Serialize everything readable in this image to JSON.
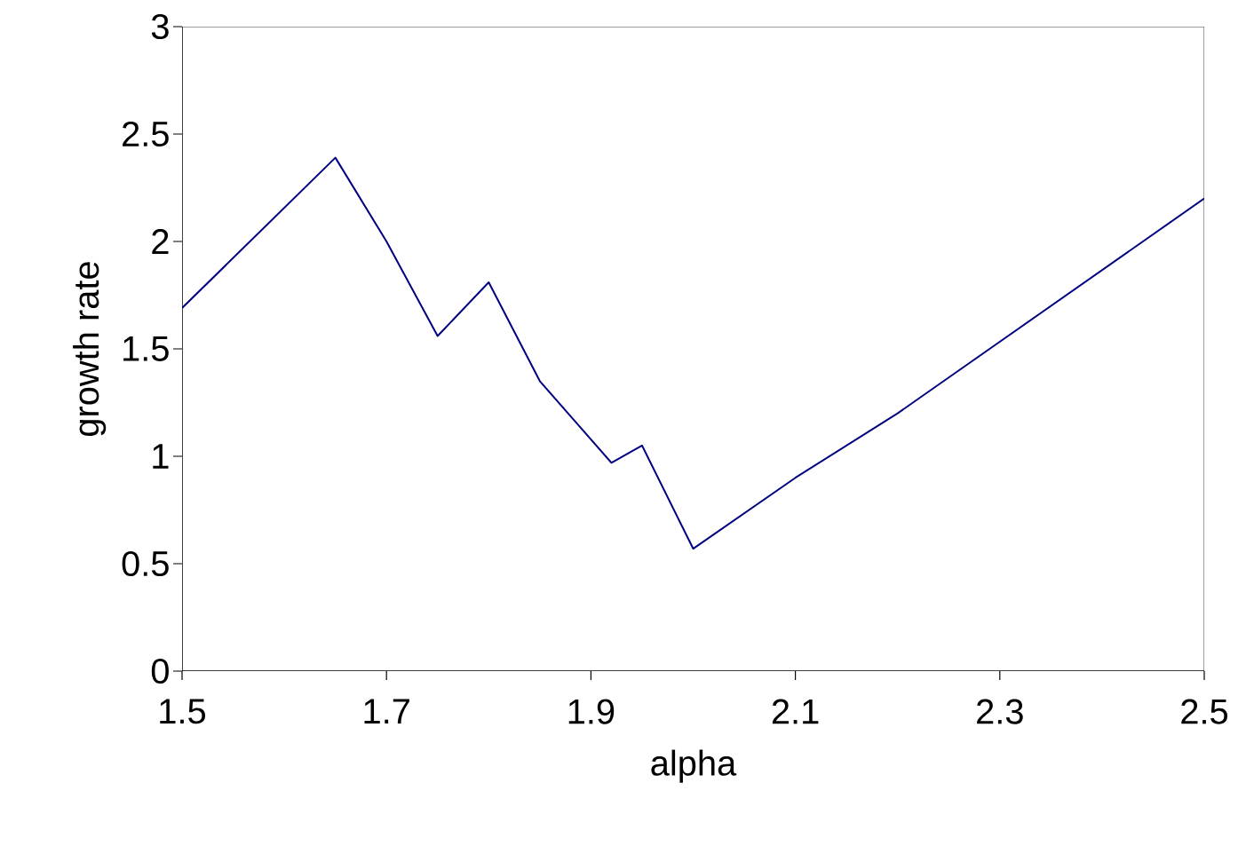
{
  "chart_data": {
    "type": "line",
    "xlabel": "alpha",
    "ylabel": "growth rate",
    "x": [
      1.5,
      1.65,
      1.7,
      1.75,
      1.8,
      1.85,
      1.92,
      1.95,
      2.0,
      2.1,
      2.2,
      2.5
    ],
    "series": [
      {
        "color": "#000080",
        "values": [
          1.69,
          2.39,
          2.0,
          1.56,
          1.81,
          1.35,
          0.97,
          1.05,
          0.57,
          0.9,
          1.2,
          2.2
        ]
      }
    ],
    "xlim": [
      1.5,
      2.5
    ],
    "xticks": [
      1.5,
      1.7,
      1.9,
      2.1,
      2.3,
      2.5
    ],
    "ylim": [
      0,
      3
    ],
    "yticks": [
      0,
      0.5,
      1,
      1.5,
      2,
      2.5,
      3
    ],
    "grid": false,
    "marker": "none",
    "line_style": "solid"
  }
}
